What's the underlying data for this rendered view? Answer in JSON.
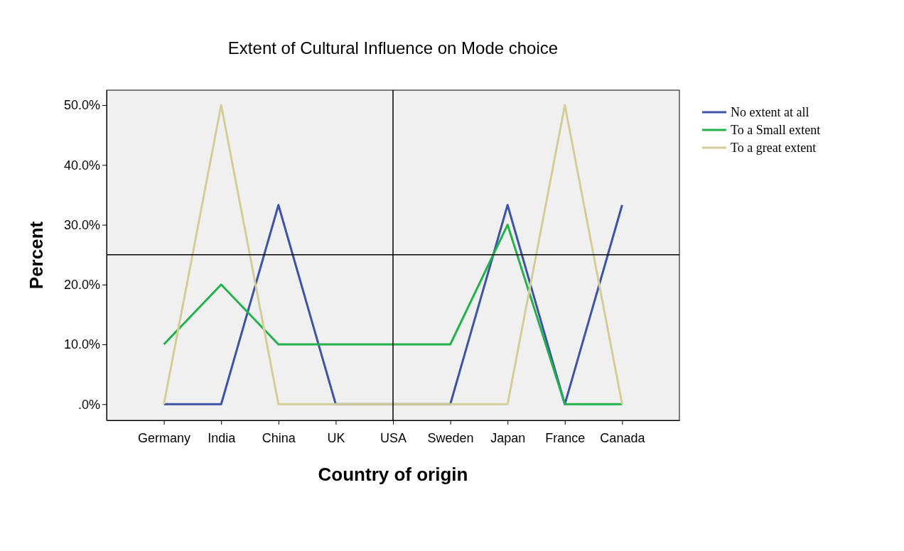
{
  "chart_data": {
    "type": "line",
    "title": "Extent of Cultural Influence on Mode choice",
    "xlabel": "Country of origin",
    "ylabel": "Percent",
    "categories": [
      "Germany",
      "India",
      "China",
      "UK",
      "USA",
      "Sweden",
      "Japan",
      "France",
      "Canada"
    ],
    "series": [
      {
        "name": "No extent at all",
        "color": "#3e53a4",
        "values": [
          0,
          0,
          33.3,
          0,
          0,
          0,
          33.3,
          0,
          33.3
        ]
      },
      {
        "name": "To a Small extent",
        "color": "#21b24b",
        "values": [
          10,
          20,
          10,
          10,
          10,
          10,
          30,
          0,
          0
        ]
      },
      {
        "name": "To a great extent",
        "color": "#d3ce97",
        "values": [
          0,
          50,
          0,
          0,
          0,
          0,
          0,
          50,
          0
        ]
      }
    ],
    "ylim": [
      -2.7,
      52.5
    ],
    "yticks": [
      {
        "value": 0,
        "label": ".0%"
      },
      {
        "value": 10,
        "label": "10.0%"
      },
      {
        "value": 20,
        "label": "20.0%"
      },
      {
        "value": 30,
        "label": "30.0%"
      },
      {
        "value": 40,
        "label": "40.0%"
      },
      {
        "value": 50,
        "label": "50.0%"
      }
    ],
    "ref_lines": [
      {
        "axis": "x",
        "value": "USA",
        "color": "#000000"
      },
      {
        "axis": "y",
        "value": 25,
        "color": "#000000"
      }
    ],
    "grid": false,
    "legend": "right",
    "marker": "none",
    "line_style": "solid"
  }
}
